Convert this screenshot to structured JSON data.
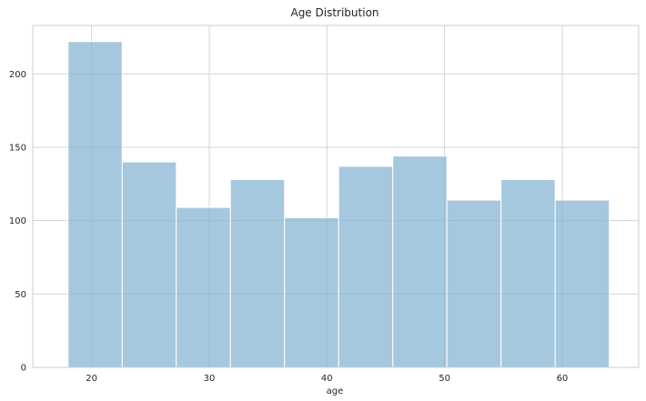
{
  "chart_data": {
    "type": "bar",
    "title": "Age Distribution",
    "xlabel": "age",
    "ylabel": "",
    "bin_edges": [
      18,
      22.6,
      27.2,
      31.8,
      36.4,
      41,
      45.6,
      50.2,
      54.8,
      59.4,
      64
    ],
    "values": [
      222,
      140,
      109,
      128,
      102,
      137,
      144,
      114,
      128,
      114
    ],
    "xlim": [
      15,
      66.5
    ],
    "ylim": [
      0,
      233
    ],
    "xticks": [
      20,
      30,
      40,
      50,
      60
    ],
    "yticks": [
      0,
      50,
      100,
      150,
      200
    ],
    "grid": true,
    "bar_color": "#7fb0d2",
    "bar_opacity": 0.7
  }
}
